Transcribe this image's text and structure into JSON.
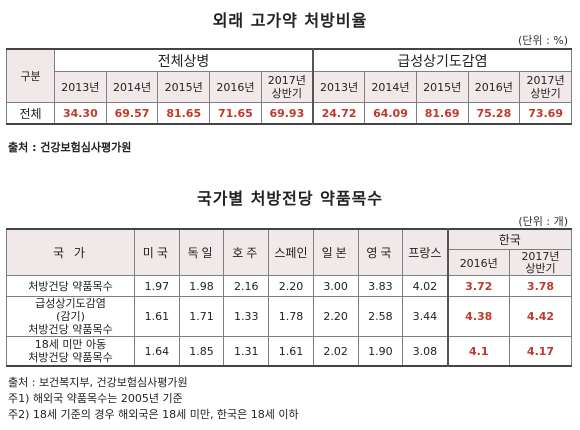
{
  "table1": {
    "title": "외래 고가약 처방비율",
    "unit": "(단위 : %)",
    "corner": "구분",
    "groups": [
      "전체상병",
      "급성상기도감염"
    ],
    "years": [
      "2013년",
      "2014년",
      "2015년",
      "2016년",
      "2017년 상반기"
    ],
    "year_last_line1": "2017년",
    "year_last_line2": "상반기",
    "row_label": "전체",
    "values_all": [
      "34.30",
      "69.57",
      "81.65",
      "71.65",
      "69.93"
    ],
    "values_acute": [
      "24.72",
      "64.09",
      "81.69",
      "75.28",
      "73.69"
    ],
    "source": "출처 : 건강보험심사평가원"
  },
  "table2": {
    "title": "국가별 처방전당 약품목수",
    "unit": "(단위 : 개)",
    "country_header": "국  가",
    "countries": [
      "미국",
      "독일",
      "호주",
      "스페인",
      "일본",
      "영국",
      "프랑스"
    ],
    "korea_header": "한국",
    "korea_years": [
      "2016년",
      "2017년 상반기"
    ],
    "korea_year2_line1": "2017년",
    "korea_year2_line2": "상반기",
    "rows": [
      {
        "label_lines": [
          "처방건당 약품목수"
        ],
        "values": [
          "1.97",
          "1.98",
          "2.16",
          "2.20",
          "3.00",
          "3.83",
          "4.02"
        ],
        "korea": [
          "3.72",
          "3.78"
        ]
      },
      {
        "label_lines": [
          "급성상기도감염",
          "(감기)",
          "처방건당 약품목수"
        ],
        "values": [
          "1.61",
          "1.71",
          "1.33",
          "1.78",
          "2.20",
          "2.58",
          "3.44"
        ],
        "korea": [
          "4.38",
          "4.42"
        ]
      },
      {
        "label_lines": [
          "18세 미만 아동",
          "처방건당 약품목수"
        ],
        "values": [
          "1.64",
          "1.85",
          "1.31",
          "1.61",
          "2.02",
          "1.90",
          "3.08"
        ],
        "korea": [
          "4.1",
          "4.17"
        ]
      }
    ],
    "notes": [
      "출처 : 보건복지부, 건강보험심사평가원",
      "주1) 해외국 약품목수는 2005년 기준",
      "주2) 18세 기준의 경우 해외국은 18세 미만, 한국은 18세 이하"
    ]
  },
  "colors": {
    "header_bg": "#f1e9e9",
    "highlight_red": "#c0392b"
  }
}
